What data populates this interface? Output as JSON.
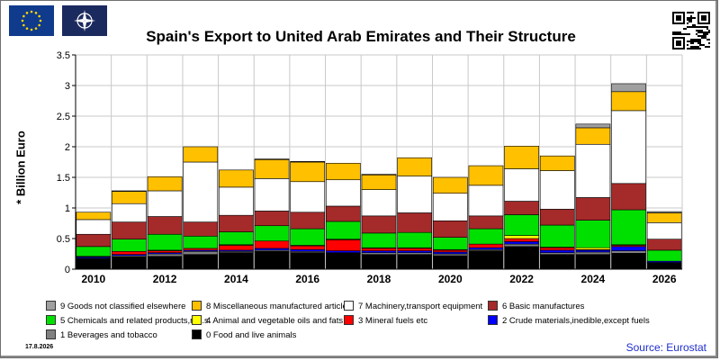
{
  "title": "Spain's Export to United Arab Emirates and Their Structure",
  "date": "17.8.2026",
  "source": "Source: Eurostat",
  "chart_data": {
    "type": "bar",
    "stacked": true,
    "title": "Spain's Export to United Arab Emirates and Their Structure",
    "ylabel": "* Billion Euro",
    "xlabel": "",
    "ylim": [
      0,
      3.5
    ],
    "yticks": [
      0,
      0.5,
      1,
      1.5,
      2,
      2.5,
      3,
      3.5
    ],
    "ytick_labels": [
      "0",
      "0.5",
      "1",
      "1.5",
      "2",
      "2.5",
      "3",
      "3.5"
    ],
    "grid": true,
    "legend_position": "bottom",
    "categories": [
      "2010",
      "2011",
      "2012",
      "2013",
      "2014",
      "2015",
      "2016",
      "2017",
      "2018",
      "2019",
      "2020",
      "2021",
      "2022",
      "2023",
      "2024",
      "2025",
      "2026"
    ],
    "xtick_labels": [
      "2010",
      "",
      "2012",
      "",
      "2014",
      "",
      "2016",
      "",
      "2018",
      "",
      "2020",
      "",
      "2022",
      "",
      "2024",
      "",
      "2026"
    ],
    "series": [
      {
        "name": "0 Food and live animals",
        "color": "#000000",
        "values": [
          0.17,
          0.2,
          0.21,
          0.24,
          0.27,
          0.29,
          0.27,
          0.26,
          0.24,
          0.24,
          0.22,
          0.3,
          0.37,
          0.24,
          0.24,
          0.26,
          0.1
        ]
      },
      {
        "name": "1 Beverages and tobacco",
        "color": "#808080",
        "values": [
          0.01,
          0.02,
          0.04,
          0.05,
          0.02,
          0.02,
          0.02,
          0.01,
          0.03,
          0.03,
          0.03,
          0.02,
          0.04,
          0.03,
          0.04,
          0.04,
          0.01
        ]
      },
      {
        "name": "2 Crude materials,inedible,except fuels",
        "color": "#0000ff",
        "values": [
          0.02,
          0.02,
          0.02,
          0.02,
          0.02,
          0.03,
          0.03,
          0.03,
          0.03,
          0.03,
          0.03,
          0.03,
          0.04,
          0.04,
          0.03,
          0.07,
          0.02
        ]
      },
      {
        "name": "3 Mineral fuels etc",
        "color": "#ff0000",
        "values": [
          0.01,
          0.05,
          0.03,
          0.03,
          0.08,
          0.12,
          0.06,
          0.18,
          0.04,
          0.04,
          0.03,
          0.06,
          0.05,
          0.04,
          0.01,
          0.02,
          0.0
        ]
      },
      {
        "name": "4 Animal and vegetable oils and fats",
        "color": "#ffff00",
        "values": [
          0.0,
          0.0,
          0.01,
          0.0,
          0.01,
          0.0,
          0.01,
          0.01,
          0.01,
          0.01,
          0.01,
          0.0,
          0.05,
          0.01,
          0.03,
          0.01,
          0.0
        ]
      },
      {
        "name": "5 Chemicals and related products,n.e.s.",
        "color": "#00e000",
        "values": [
          0.16,
          0.2,
          0.26,
          0.2,
          0.21,
          0.25,
          0.27,
          0.29,
          0.24,
          0.25,
          0.2,
          0.25,
          0.34,
          0.36,
          0.45,
          0.57,
          0.18
        ]
      },
      {
        "name": "6 Basic manufactures",
        "color": "#a52a2a",
        "values": [
          0.2,
          0.28,
          0.29,
          0.23,
          0.27,
          0.24,
          0.27,
          0.25,
          0.28,
          0.32,
          0.27,
          0.21,
          0.22,
          0.26,
          0.37,
          0.43,
          0.18
        ]
      },
      {
        "name": "7 Machinery,transport equipment",
        "color": "#ffffff",
        "values": [
          0.24,
          0.3,
          0.42,
          0.98,
          0.46,
          0.53,
          0.5,
          0.43,
          0.43,
          0.6,
          0.45,
          0.5,
          0.53,
          0.63,
          0.87,
          1.19,
          0.27
        ]
      },
      {
        "name": "8 Miscellaneous manufactured articles",
        "color": "#ffc000",
        "values": [
          0.12,
          0.2,
          0.23,
          0.25,
          0.28,
          0.31,
          0.32,
          0.27,
          0.24,
          0.3,
          0.26,
          0.32,
          0.37,
          0.24,
          0.27,
          0.31,
          0.16
        ]
      },
      {
        "name": "9 Goods not classified elsewhere",
        "color": "#a0a0a0",
        "values": [
          0.0,
          0.01,
          0.0,
          0.0,
          0.0,
          0.01,
          0.01,
          0.0,
          0.01,
          0.0,
          0.0,
          0.0,
          0.0,
          0.0,
          0.06,
          0.13,
          0.02
        ]
      }
    ]
  },
  "legend": [
    {
      "label": "9 Goods not classified elsewhere",
      "color": "#a0a0a0"
    },
    {
      "label": "8 Miscellaneous manufactured articles",
      "color": "#ffc000"
    },
    {
      "label": "7 Machinery,transport equipment",
      "color": "#ffffff"
    },
    {
      "label": "6 Basic manufactures",
      "color": "#a52a2a"
    },
    {
      "label": "5 Chemicals and related products,n.e.s.",
      "color": "#00e000"
    },
    {
      "label": "4 Animal and vegetable oils and fats",
      "color": "#ffff00"
    },
    {
      "label": "3 Mineral fuels etc",
      "color": "#ff0000"
    },
    {
      "label": "2 Crude materials,inedible,except fuels",
      "color": "#0000ff"
    },
    {
      "label": "1 Beverages and tobacco",
      "color": "#808080"
    },
    {
      "label": "0 Food and live animals",
      "color": "#000000"
    }
  ],
  "icons": {
    "eu_flag": "eu-flag-icon",
    "nato_flag": "nato-flag-icon",
    "qr": "qr-code-icon"
  }
}
